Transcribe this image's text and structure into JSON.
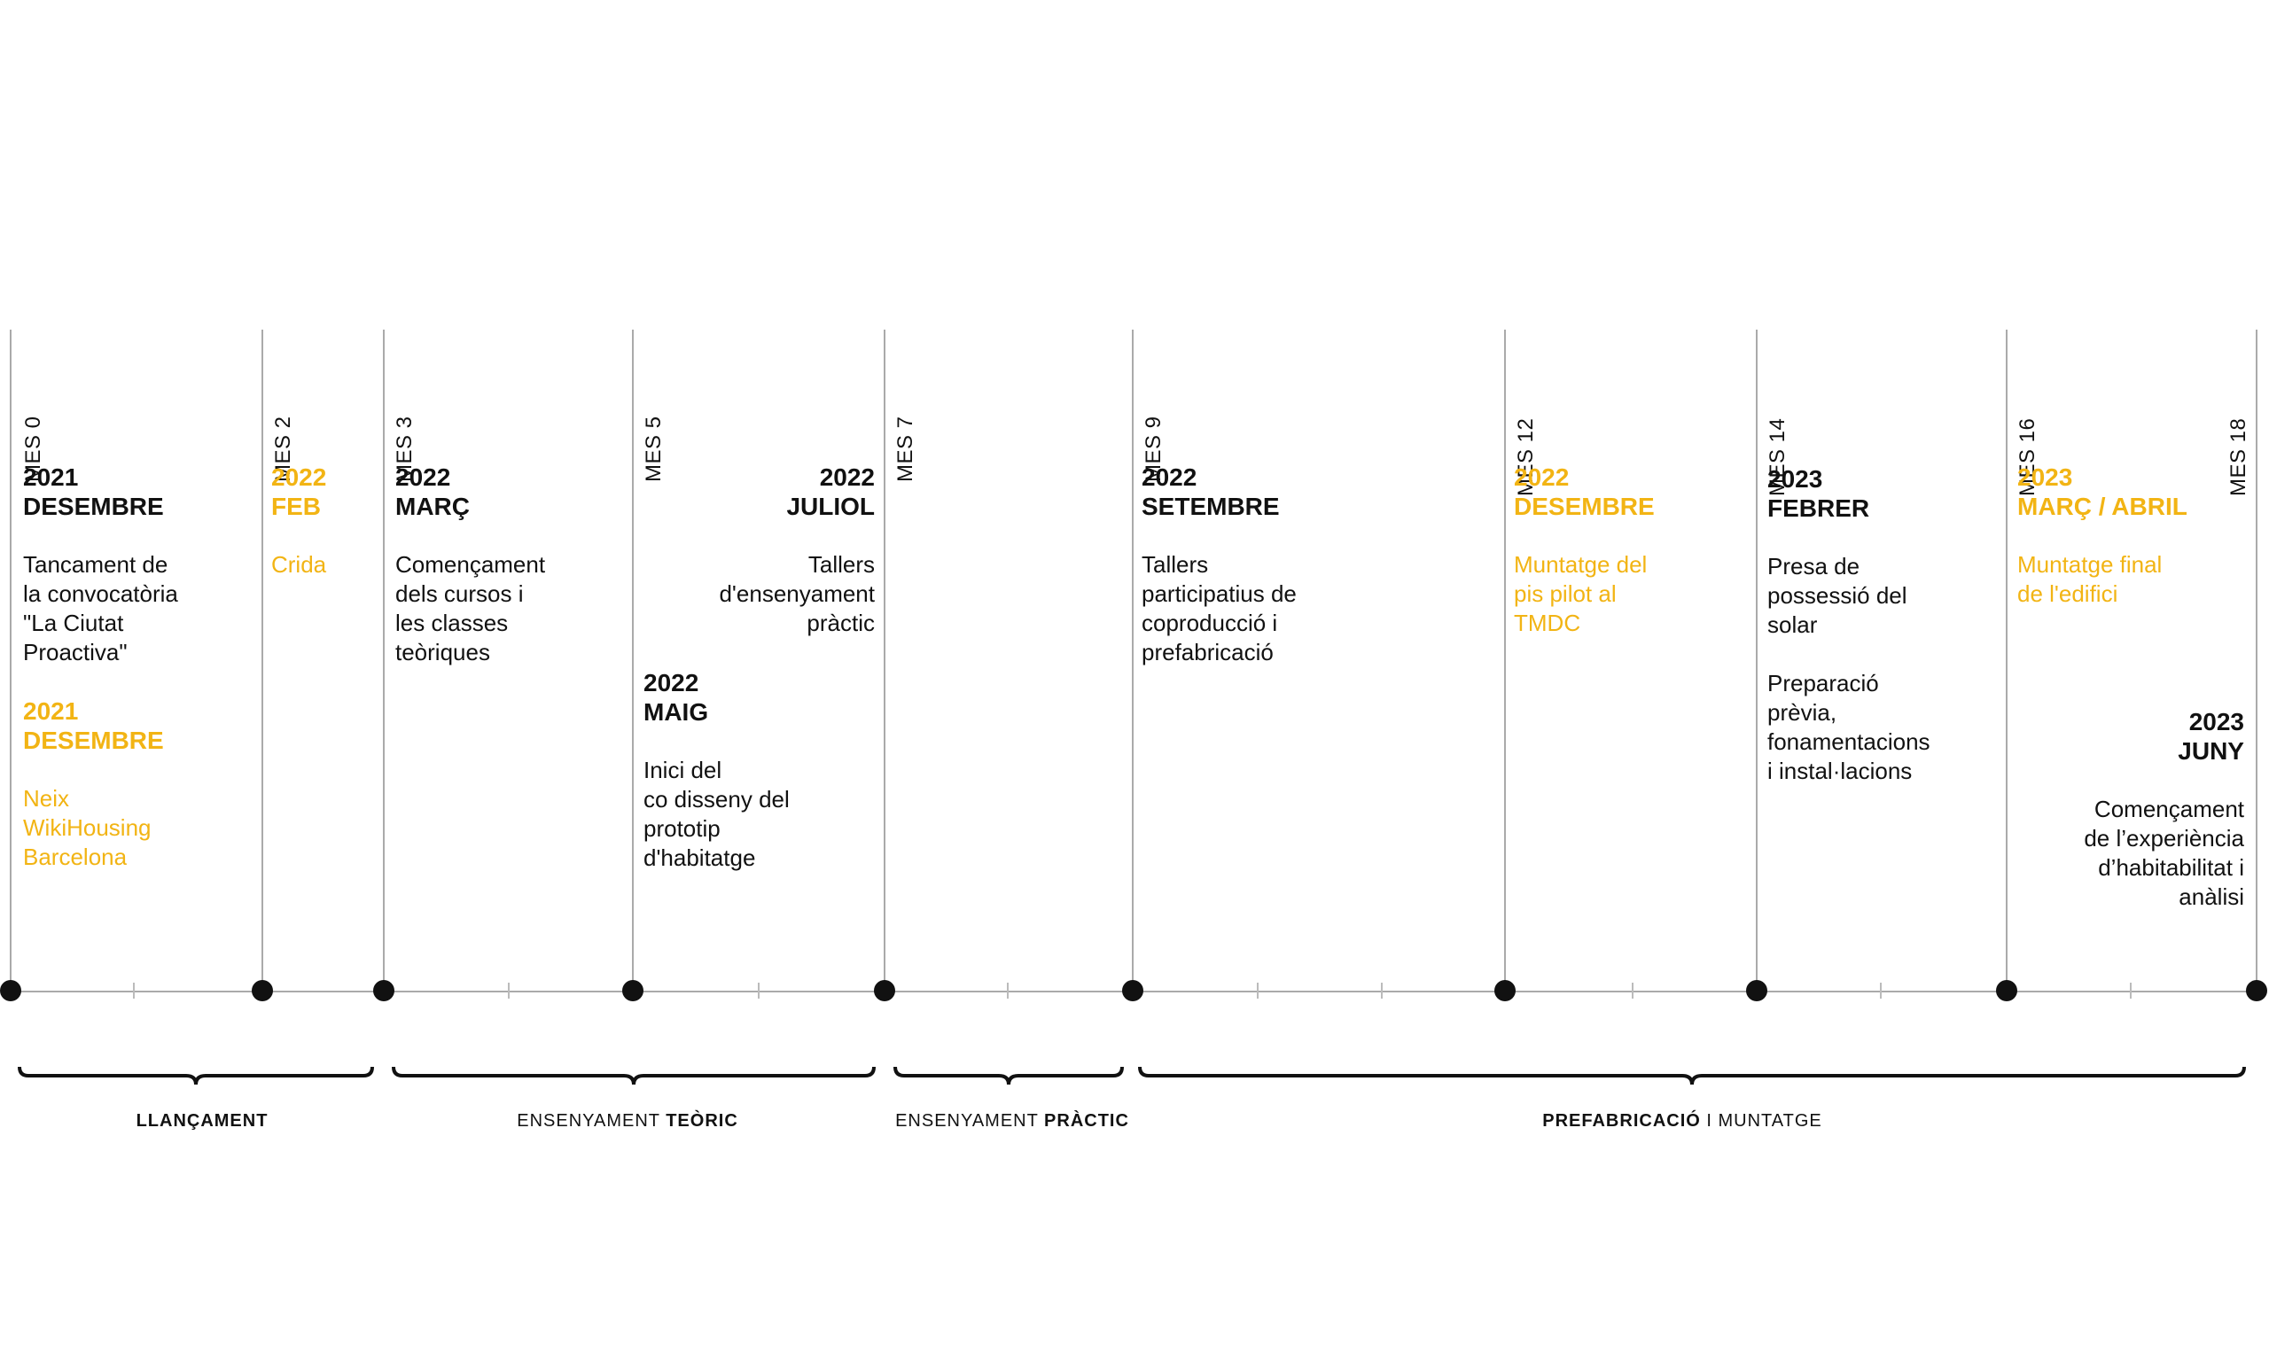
{
  "colors": {
    "accent": "#f2b414",
    "text": "#111111",
    "line": "#aaaaaa",
    "dot": "#111111"
  },
  "months": [
    {
      "label": "MES 0"
    },
    {
      "label": "MES 2"
    },
    {
      "label": "MES 3"
    },
    {
      "label": "MES 5"
    },
    {
      "label": "MES 7"
    },
    {
      "label": "MES 9"
    },
    {
      "label": "MES 12"
    },
    {
      "label": "MES 14"
    },
    {
      "label": "MES 16"
    },
    {
      "label": "MES 18"
    }
  ],
  "events": [
    {
      "year": "2021",
      "month": "DESEMBRE",
      "desc": "Tancament de\nla convocatòria\n\"La Ciutat\nProactiva\"",
      "accent": false
    },
    {
      "year": "2021",
      "month": "DESEMBRE",
      "desc": "Neix\nWikiHousing\nBarcelona",
      "accent": true
    },
    {
      "year": "2022",
      "month": "FEB",
      "desc": "Crida",
      "accent": true
    },
    {
      "year": "2022",
      "month": "MARÇ",
      "desc": "Començament\ndels cursos i\nles classes\nteòriques",
      "accent": false
    },
    {
      "year": "2022",
      "month": "JULIOL",
      "desc": "Tallers\nd'ensenyament\npràctic",
      "accent": false
    },
    {
      "year": "2022",
      "month": "MAIG",
      "desc": "Inici del\nco disseny del\nprototip\nd'habitatge",
      "accent": false
    },
    {
      "year": "2022",
      "month": "SETEMBRE",
      "desc": "Tallers\nparticipatius de\ncoproducció i\nprefabricació",
      "accent": false
    },
    {
      "year": "2022",
      "month": "DESEMBRE",
      "desc": "Muntatge del\npis pilot al\nTMDC",
      "accent": true
    },
    {
      "year": "2023",
      "month": "FEBRER",
      "desc": "Presa de\npossessió del\nsolar\n\nPreparació\nprèvia,\nfonamentacions\ni instal·lacions",
      "accent": false
    },
    {
      "year": "2023",
      "month": "MARÇ / ABRIL",
      "desc": "Muntatge final\nde l'edifici",
      "accent": true
    },
    {
      "year": "2023",
      "month": "JUNY",
      "desc": "Començament\nde l’experiència\nd’habitabilitat i\nanàlisi",
      "accent": false
    }
  ],
  "phases": [
    {
      "bold_pre": "LLANÇAMENT",
      "normal": "",
      "bold_post": ""
    },
    {
      "bold_pre": "",
      "normal": "ENSENYAMENT ",
      "bold_post": "TEÒRIC"
    },
    {
      "bold_pre": "",
      "normal": "ENSENYAMENT ",
      "bold_post": "PRÀCTIC"
    },
    {
      "bold_pre": "PREFABRICACIÓ",
      "normal": " I MUNTATGE",
      "bold_post": ""
    }
  ]
}
